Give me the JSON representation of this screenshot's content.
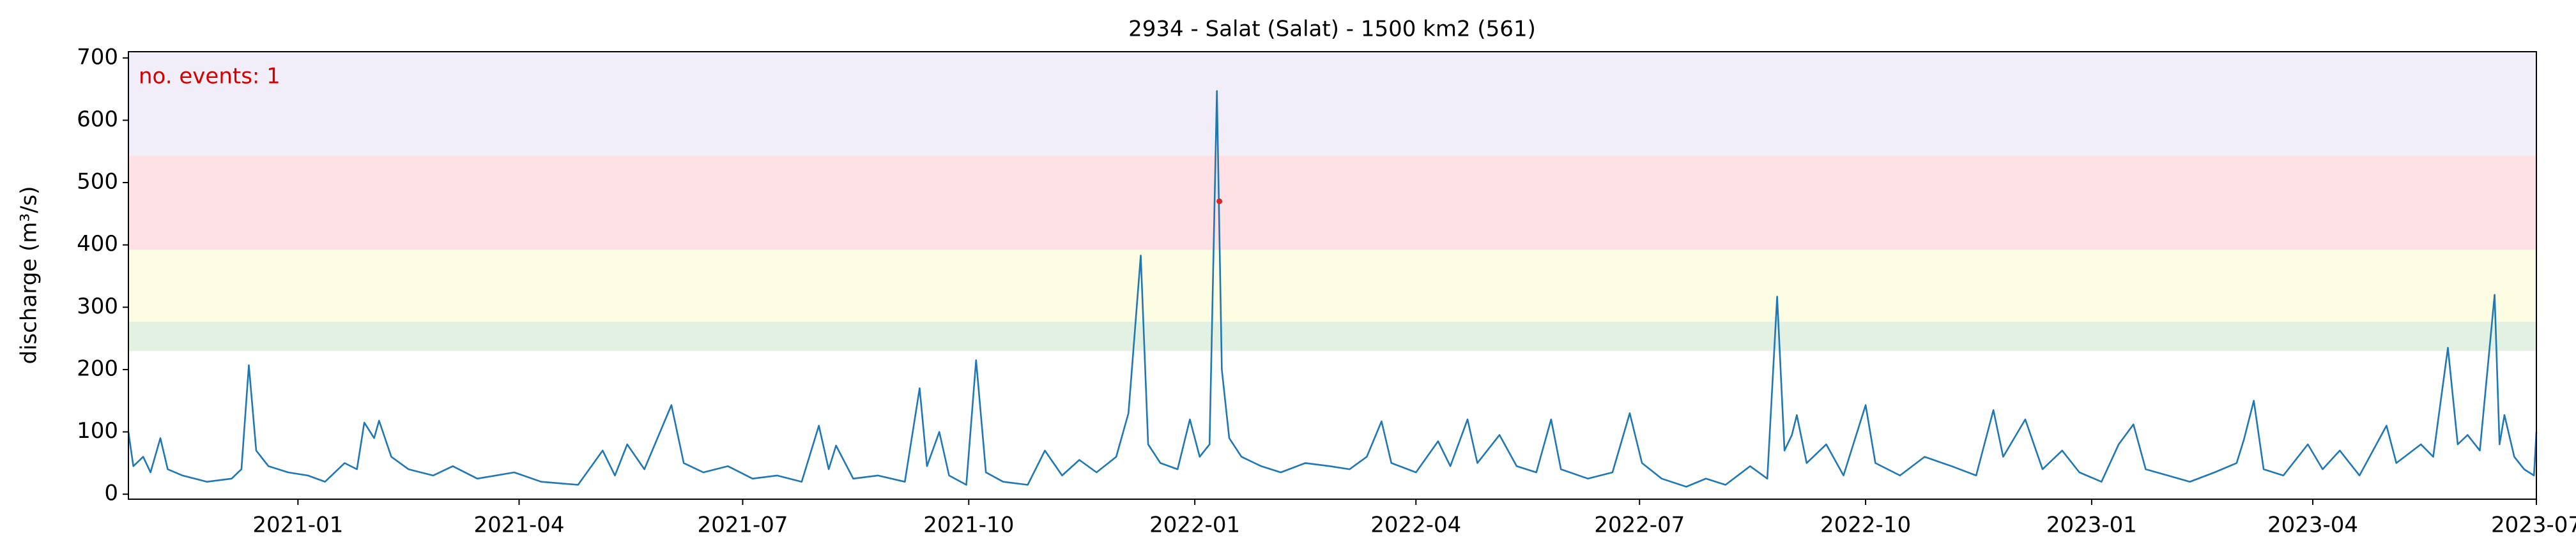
{
  "chart_data": {
    "type": "line",
    "title": "2934 - Salat (Salat) - 1500 km2 (561)",
    "ylabel": "discharge (m³/s)",
    "annotation": "no. events: 1",
    "annotation_color": "#d40000",
    "xlim": [
      "2020-10-24",
      "2023-07"
    ],
    "xticks": [
      "2021-01",
      "2021-04",
      "2021-07",
      "2021-10",
      "2022-01",
      "2022-04",
      "2022-07",
      "2022-10",
      "2023-01",
      "2023-04",
      "2023-07"
    ],
    "ylim": [
      -8,
      710
    ],
    "yticks": [
      0,
      100,
      200,
      300,
      400,
      500,
      600,
      700
    ],
    "bands": [
      {
        "from": 230,
        "to": 277,
        "color": "#e3f1e3"
      },
      {
        "from": 277,
        "to": 392,
        "color": "#fdfde3"
      },
      {
        "from": 392,
        "to": 543,
        "color": "#fde1e4"
      },
      {
        "from": 543,
        "to": 710,
        "color": "#f1eefa"
      }
    ],
    "x": [
      "2020-10-24",
      "2020-10-26",
      "2020-10-30",
      "2020-11-02",
      "2020-11-06",
      "2020-11-09",
      "2020-11-15",
      "2020-11-25",
      "2020-12-05",
      "2020-12-09",
      "2020-12-12",
      "2020-12-15",
      "2020-12-20",
      "2020-12-28",
      "2021-01-05",
      "2021-01-12",
      "2021-01-20",
      "2021-01-25",
      "2021-01-28",
      "2021-02-01",
      "2021-02-03",
      "2021-02-08",
      "2021-02-15",
      "2021-02-25",
      "2021-03-05",
      "2021-03-15",
      "2021-03-30",
      "2021-04-10",
      "2021-04-25",
      "2021-05-05",
      "2021-05-10",
      "2021-05-15",
      "2021-05-22",
      "2021-06-02",
      "2021-06-07",
      "2021-06-15",
      "2021-06-25",
      "2021-07-05",
      "2021-07-15",
      "2021-07-25",
      "2021-08-01",
      "2021-08-05",
      "2021-08-08",
      "2021-08-15",
      "2021-08-25",
      "2021-09-05",
      "2021-09-11",
      "2021-09-14",
      "2021-09-19",
      "2021-09-23",
      "2021-09-30",
      "2021-10-04",
      "2021-10-08",
      "2021-10-15",
      "2021-10-25",
      "2021-11-01",
      "2021-11-08",
      "2021-11-15",
      "2021-11-22",
      "2021-11-30",
      "2021-12-05",
      "2021-12-10",
      "2021-12-13",
      "2021-12-18",
      "2021-12-25",
      "2021-12-30",
      "2022-01-03",
      "2022-01-07",
      "2022-01-10",
      "2022-01-12",
      "2022-01-15",
      "2022-01-20",
      "2022-01-28",
      "2022-02-05",
      "2022-02-15",
      "2022-02-25",
      "2022-03-05",
      "2022-03-12",
      "2022-03-18",
      "2022-03-22",
      "2022-04-01",
      "2022-04-10",
      "2022-04-15",
      "2022-04-22",
      "2022-04-26",
      "2022-05-05",
      "2022-05-12",
      "2022-05-20",
      "2022-05-26",
      "2022-05-30",
      "2022-06-10",
      "2022-06-20",
      "2022-06-27",
      "2022-07-02",
      "2022-07-10",
      "2022-07-20",
      "2022-07-28",
      "2022-08-05",
      "2022-08-15",
      "2022-08-22",
      "2022-08-26",
      "2022-08-29",
      "2022-09-01",
      "2022-09-03",
      "2022-09-07",
      "2022-09-15",
      "2022-09-22",
      "2022-10-01",
      "2022-10-05",
      "2022-10-15",
      "2022-10-25",
      "2022-11-05",
      "2022-11-15",
      "2022-11-22",
      "2022-11-26",
      "2022-12-05",
      "2022-12-12",
      "2022-12-20",
      "2022-12-27",
      "2023-01-05",
      "2023-01-12",
      "2023-01-18",
      "2023-01-23",
      "2023-02-01",
      "2023-02-10",
      "2023-02-20",
      "2023-03-01",
      "2023-03-04",
      "2023-03-08",
      "2023-03-12",
      "2023-03-20",
      "2023-03-30",
      "2023-04-05",
      "2023-04-12",
      "2023-04-20",
      "2023-05-01",
      "2023-05-05",
      "2023-05-15",
      "2023-05-20",
      "2023-05-26",
      "2023-05-30",
      "2023-06-03",
      "2023-06-08",
      "2023-06-14",
      "2023-06-16",
      "2023-06-18",
      "2023-06-22",
      "2023-06-26",
      "2023-06-30",
      "2023-07-01"
    ],
    "series": [
      {
        "color": "#1f77b4",
        "values": [
          100,
          45,
          60,
          35,
          90,
          40,
          30,
          20,
          25,
          40,
          207,
          70,
          45,
          35,
          30,
          20,
          50,
          40,
          115,
          90,
          118,
          60,
          40,
          30,
          45,
          25,
          35,
          20,
          15,
          70,
          30,
          80,
          40,
          143,
          50,
          35,
          45,
          25,
          30,
          20,
          110,
          40,
          78,
          25,
          30,
          20,
          170,
          45,
          100,
          30,
          15,
          215,
          35,
          20,
          15,
          70,
          30,
          55,
          35,
          60,
          130,
          383,
          80,
          50,
          40,
          120,
          60,
          80,
          647,
          200,
          90,
          60,
          45,
          35,
          50,
          45,
          40,
          60,
          117,
          50,
          35,
          85,
          45,
          120,
          50,
          95,
          45,
          35,
          120,
          40,
          25,
          35,
          130,
          50,
          25,
          12,
          25,
          15,
          45,
          25,
          317,
          70,
          95,
          127,
          50,
          80,
          30,
          143,
          50,
          30,
          60,
          45,
          30,
          135,
          60,
          120,
          40,
          70,
          35,
          20,
          80,
          112,
          40,
          30,
          20,
          35,
          50,
          88,
          150,
          40,
          30,
          80,
          40,
          70,
          30,
          110,
          50,
          80,
          60,
          235,
          80,
          95,
          70,
          320,
          80,
          127,
          60,
          40,
          30,
          100
        ]
      }
    ],
    "events": {
      "color": "#d62728",
      "x": [
        "2022-01-11"
      ],
      "values": [
        470
      ]
    }
  }
}
